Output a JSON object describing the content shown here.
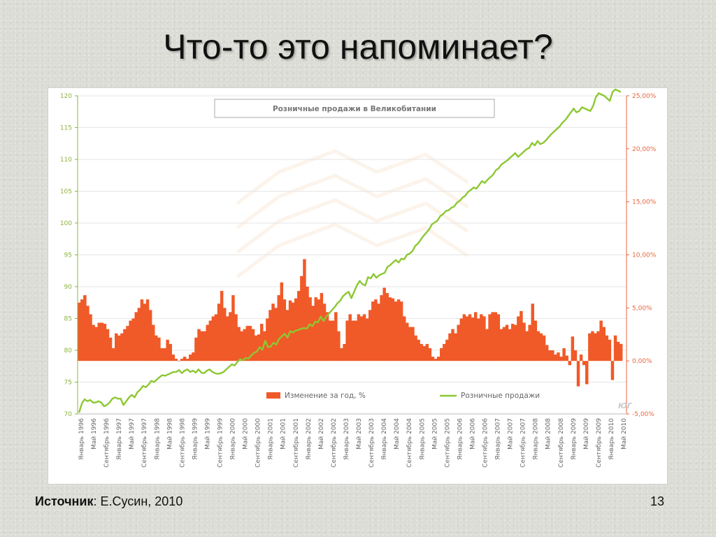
{
  "slide": {
    "title": "Что-то это напоминает?",
    "source_label": "Источник",
    "source_text": ": Е.Сусин, 2010",
    "page_number": "13"
  },
  "colors": {
    "bar": "#f05a28",
    "line": "#8cc832",
    "left_axis_text": "#8cb43c",
    "right_axis_text": "#e8643c",
    "x_tick_text": "#666666",
    "grid": "#e6e6e6"
  },
  "chart_data": {
    "type": "bar+line",
    "title": "Розничные продажи в Великобитании",
    "watermark": "ЮГ",
    "grid": true,
    "legend_position": "bottom-center",
    "x_tick_labels": [
      "Январь 1996",
      "Май 1996",
      "Сентябрь 1996",
      "Январь 1997",
      "Май 1997",
      "Сентябрь 1997",
      "Январь 1998",
      "Май 1998",
      "Сентябрь 1998",
      "Январь 1999",
      "Май 1999",
      "Сентябрь 1999",
      "Январь 2000",
      "Май 2000",
      "Сентябрь 2000",
      "Январь 2001",
      "Май 2001",
      "Сентябрь 2001",
      "Январь 2002",
      "Май 2002",
      "Сентябрь 2002",
      "Январь 2003",
      "Май 2003",
      "Сентябрь 2003",
      "Январь 2004",
      "Май 2004",
      "Сентябрь 2004",
      "Январь 2005",
      "Май 2005",
      "Сентябрь 2005",
      "Январь 2006",
      "Май 2006",
      "Сентябрь 2006",
      "Январь 2007",
      "Май 2007",
      "Сентябрь 2007",
      "Январь 2008",
      "Май 2008",
      "Сентябрь 2008",
      "Январь 2009",
      "Май 2009",
      "Сентябрь 2009",
      "Январь 2010",
      "Май 2010"
    ],
    "left_axis": {
      "min": 70,
      "max": 120,
      "ticks": [
        "70",
        "75",
        "80",
        "85",
        "90",
        "95",
        "100",
        "105",
        "110",
        "115",
        "120"
      ]
    },
    "right_axis": {
      "min": -5,
      "max": 25,
      "ticks": [
        "-5,00%",
        "0,00%",
        "5,00%",
        "10,00%",
        "15,00%",
        "20,00%",
        "25,00%"
      ]
    },
    "series": [
      {
        "name": "Изменение за год, %",
        "type": "area",
        "axis": "right",
        "values": [
          5.5,
          5.8,
          6.2,
          5.2,
          4.4,
          3.4,
          3.2,
          3.6,
          3.6,
          3.5,
          3.0,
          2.2,
          1.2,
          2.6,
          2.4,
          2.6,
          3.0,
          3.3,
          3.8,
          4.0,
          4.6,
          5.0,
          5.8,
          5.4,
          5.8,
          4.8,
          3.4,
          2.4,
          2.2,
          1.2,
          1.2,
          2.0,
          1.6,
          0.6,
          0.2,
          0.0,
          0.2,
          0.4,
          0.2,
          0.6,
          0.8,
          2.2,
          3.0,
          2.8,
          2.8,
          3.4,
          3.8,
          4.2,
          4.4,
          5.4,
          6.6,
          5.0,
          4.2,
          4.6,
          6.2,
          4.4,
          3.2,
          2.8,
          3.0,
          3.3,
          3.3,
          3.0,
          2.4,
          2.5,
          3.5,
          2.8,
          4.0,
          4.8,
          5.4,
          5.0,
          6.2,
          7.4,
          5.8,
          4.8,
          5.7,
          5.5,
          5.9,
          6.6,
          8.0,
          9.6,
          7.0,
          6.0,
          5.2,
          6.0,
          5.8,
          6.4,
          5.4,
          4.6,
          3.8,
          3.8,
          4.6,
          2.8,
          1.2,
          1.6,
          3.8,
          4.4,
          3.8,
          3.8,
          4.4,
          4.2,
          4.4,
          4.0,
          4.8,
          5.6,
          5.8,
          5.4,
          6.2,
          6.9,
          6.4,
          6.0,
          5.9,
          5.6,
          5.8,
          5.6,
          4.2,
          3.6,
          3.2,
          3.2,
          2.4,
          2.0,
          1.6,
          1.4,
          1.6,
          1.2,
          0.4,
          0.2,
          0.4,
          1.2,
          1.6,
          2.0,
          2.6,
          3.0,
          2.6,
          3.4,
          4.0,
          4.4,
          4.2,
          4.4,
          4.1,
          4.6,
          4.0,
          4.4,
          4.2,
          3.0,
          4.4,
          4.6,
          4.6,
          4.4,
          3.0,
          3.2,
          3.4,
          3.0,
          3.5,
          3.4,
          4.2,
          4.7,
          3.6,
          2.8,
          3.4,
          5.4,
          3.8,
          2.8,
          2.6,
          2.4,
          1.5,
          1.0,
          1.0,
          0.6,
          0.8,
          0.4,
          1.2,
          0.5,
          -0.4,
          2.3,
          1.0,
          -2.4,
          0.6,
          -0.4,
          -2.2,
          2.6,
          2.8,
          2.6,
          2.8,
          3.8,
          3.2,
          2.4,
          2.0,
          -1.8,
          2.4,
          1.8,
          1.6
        ]
      },
      {
        "name": "Розничные продажи",
        "type": "line",
        "axis": "left",
        "values": [
          70.2,
          71.6,
          72.3,
          72.0,
          72.2,
          71.8,
          71.8,
          72.0,
          71.8,
          71.2,
          71.4,
          71.8,
          72.4,
          72.6,
          72.4,
          72.4,
          71.4,
          72.0,
          72.6,
          73.0,
          72.6,
          73.4,
          73.8,
          74.4,
          74.2,
          74.6,
          75.2,
          75.0,
          75.4,
          75.8,
          76.1,
          76.0,
          76.2,
          76.4,
          76.6,
          76.6,
          76.9,
          76.4,
          76.8,
          77.0,
          76.6,
          76.8,
          76.5,
          77.0,
          76.5,
          76.4,
          76.8,
          77.0,
          76.6,
          76.4,
          76.3,
          76.4,
          76.6,
          77.0,
          77.4,
          77.8,
          77.6,
          78.2,
          78.6,
          78.4,
          78.8,
          78.7,
          79.2,
          79.6,
          79.8,
          80.5,
          80.1,
          81.5,
          80.5,
          80.6,
          81.2,
          80.9,
          81.8,
          82.2,
          82.6,
          82.0,
          83.0,
          82.8,
          83.1,
          83.2,
          83.4,
          83.5,
          83.4,
          84.1,
          83.8,
          84.5,
          84.4,
          85.3,
          84.6,
          85.3,
          85.8,
          86.3,
          86.8,
          87.4,
          87.8,
          88.5,
          88.9,
          89.2,
          88.2,
          89.2,
          90.2,
          90.9,
          90.4,
          90.2,
          91.5,
          91.3,
          92.0,
          91.4,
          91.8,
          92.0,
          92.2,
          93.1,
          93.4,
          93.8,
          94.2,
          93.8,
          94.4,
          94.3,
          95.0,
          95.2,
          95.6,
          96.4,
          96.8,
          97.4,
          98.0,
          98.5,
          99.0,
          99.8,
          100.1,
          100.4,
          101.1,
          101.4,
          101.9,
          102.0,
          102.4,
          102.6,
          103.2,
          103.5,
          104.0,
          104.3,
          104.9,
          105.2,
          105.6,
          105.4,
          106.0,
          106.6,
          106.3,
          106.8,
          107.2,
          107.6,
          108.3,
          108.6,
          109.2,
          109.5,
          109.8,
          110.2,
          110.6,
          111.0,
          110.4,
          110.8,
          111.2,
          111.6,
          111.8,
          112.6,
          112.2,
          112.9,
          112.4,
          112.6,
          113.0,
          113.5,
          114.0,
          114.4,
          114.8,
          115.2,
          115.8,
          116.2,
          116.8,
          117.4,
          118.0,
          117.4,
          117.6,
          118.2,
          118.0,
          117.8,
          117.6,
          118.4,
          119.8,
          120.4,
          120.2,
          120.0,
          119.6,
          119.2,
          120.6,
          121.0,
          120.8,
          120.6
        ]
      }
    ]
  }
}
